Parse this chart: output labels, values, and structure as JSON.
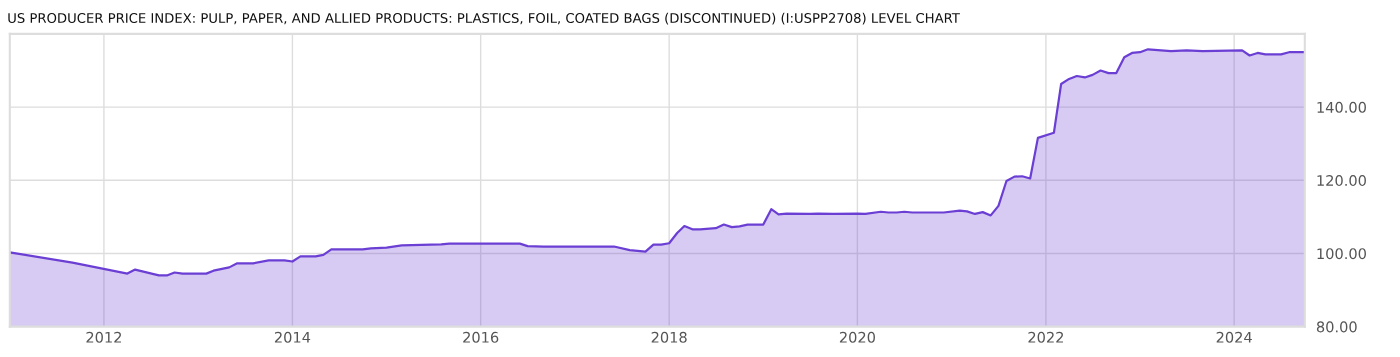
{
  "chart_data": {
    "type": "area",
    "title": "US PRODUCER PRICE INDEX: PULP, PAPER, AND ALLIED PRODUCTS: PLASTICS, FOIL, COATED BAGS (DISCONTINUED) (I:USPP2708) LEVEL CHART",
    "x": [
      "2011-01",
      "2011-09",
      "2012-04",
      "2012-05",
      "2012-08",
      "2012-09",
      "2012-10",
      "2012-11",
      "2013-02",
      "2013-03",
      "2013-05",
      "2013-06",
      "2013-08",
      "2013-10",
      "2013-12",
      "2014-01",
      "2014-02",
      "2014-04",
      "2014-05",
      "2014-06",
      "2014-10",
      "2014-11",
      "2015-01",
      "2015-03",
      "2015-08",
      "2015-09",
      "2016-06",
      "2016-07",
      "2016-09",
      "2017-06",
      "2017-08",
      "2017-10",
      "2017-11",
      "2017-12",
      "2018-01",
      "2018-02",
      "2018-03",
      "2018-04",
      "2018-05",
      "2018-07",
      "2018-08",
      "2018-09",
      "2018-10",
      "2018-11",
      "2019-01",
      "2019-02",
      "2019-03",
      "2019-04",
      "2019-07",
      "2019-08",
      "2019-10",
      "2020-01",
      "2020-02",
      "2020-04",
      "2020-05",
      "2020-06",
      "2020-07",
      "2020-08",
      "2020-10",
      "2020-12",
      "2021-02",
      "2021-03",
      "2021-04",
      "2021-05",
      "2021-06",
      "2021-07",
      "2021-08",
      "2021-09",
      "2021-10",
      "2021-11",
      "2021-12",
      "2022-02",
      "2022-03",
      "2022-04",
      "2022-05",
      "2022-06",
      "2022-07",
      "2022-08",
      "2022-09",
      "2022-10",
      "2022-11",
      "2022-12",
      "2023-01",
      "2023-02",
      "2023-05",
      "2023-07",
      "2023-09",
      "2024-02",
      "2024-03",
      "2024-04",
      "2024-05",
      "2024-07",
      "2024-08",
      "2024-10"
    ],
    "series": [
      {
        "color": "#6b3fd4",
        "values": [
          100.3,
          97.5,
          94.5,
          95.6,
          94.0,
          94.0,
          94.8,
          94.5,
          94.5,
          95.3,
          96.2,
          97.3,
          97.3,
          98.1,
          98.1,
          97.8,
          99.2,
          99.2,
          99.6,
          101.1,
          101.1,
          101.4,
          101.6,
          102.2,
          102.5,
          102.7,
          102.7,
          102.0,
          101.9,
          101.9,
          100.9,
          100.5,
          102.4,
          102.4,
          102.8,
          105.6,
          107.5,
          106.6,
          106.6,
          106.9,
          107.9,
          107.2,
          107.4,
          107.9,
          107.9,
          112.1,
          110.7,
          110.9,
          110.8,
          110.9,
          110.8,
          110.9,
          110.8,
          111.4,
          111.2,
          111.2,
          111.4,
          111.2,
          111.2,
          111.2,
          111.7,
          111.5,
          110.8,
          111.3,
          110.4,
          113.0,
          119.8,
          121.0,
          121.1,
          120.5,
          131.6,
          133.0,
          146.3,
          147.7,
          148.5,
          148.1,
          148.8,
          150.0,
          149.3,
          149.3,
          153.6,
          154.8,
          155.0,
          155.8,
          155.3,
          155.5,
          155.3,
          155.5,
          154.1,
          154.8,
          154.4,
          154.4,
          155.0,
          155.0
        ]
      }
    ],
    "xlim": [
      "2011-01",
      "2024-10"
    ],
    "xticks": [
      "2012",
      "2014",
      "2016",
      "2018",
      "2020",
      "2022",
      "2024"
    ],
    "ylim": [
      80,
      160
    ],
    "yticks": [
      {
        "value": 80,
        "label": "80.00"
      },
      {
        "value": 100,
        "label": "100.00"
      },
      {
        "value": 120,
        "label": "120.00"
      },
      {
        "value": 140,
        "label": "140.00"
      }
    ],
    "grid": true
  }
}
